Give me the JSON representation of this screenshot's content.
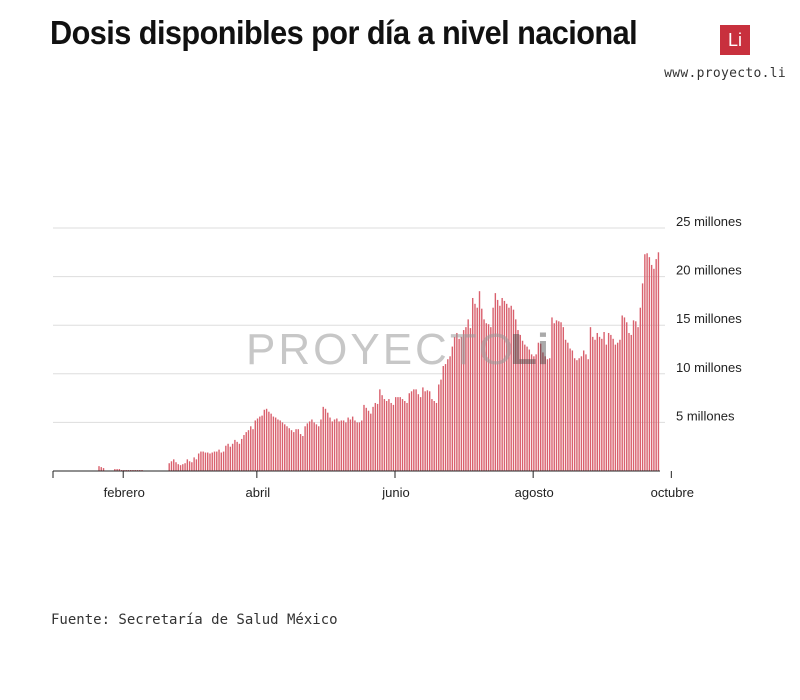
{
  "header": {
    "title": "Dosis disponibles por día a nivel nacional",
    "logo_text": "Li",
    "url": "www.proyecto.li"
  },
  "footer": {
    "source": "Fuente: Secretaría de Salud México"
  },
  "watermark": {
    "text": "PROYECTO",
    "mark": "Li"
  },
  "colors": {
    "bar": "#d9606d",
    "logo": "#c8303d",
    "grid": "#dddddd",
    "axis": "#222222"
  },
  "chart_data": {
    "type": "bar",
    "title": "Dosis disponibles por día a nivel nacional",
    "xlabel": "",
    "ylabel": "",
    "grid": true,
    "y_axis_position": "right",
    "ylim": [
      0,
      25000000
    ],
    "y_ticks": [
      5000000,
      10000000,
      15000000,
      20000000,
      25000000
    ],
    "y_tick_labels": [
      "5 millones",
      "10 millones",
      "15 millones",
      "20 millones",
      "25 millones"
    ],
    "x_tick_labels": [
      "febrero",
      "abril",
      "junio",
      "agosto",
      "octubre"
    ],
    "x_start": "2021-01-01",
    "series": [
      {
        "values_millions": [
          0.0,
          0.0,
          0.0,
          0.0,
          0.0,
          0.0,
          0.0,
          0.0,
          0.0,
          0.0,
          0.0,
          0.0,
          0.0,
          0.0,
          0.0,
          0.0,
          0.0,
          0.0,
          0.0,
          0.0,
          0.5,
          0.4,
          0.3,
          0.0,
          0.0,
          0.0,
          0.0,
          0.2,
          0.2,
          0.2,
          0.1,
          0.1,
          0.1,
          0.1,
          0.1,
          0.1,
          0.1,
          0.1,
          0.1,
          0.1,
          0.0,
          0.0,
          0.0,
          0.0,
          0.0,
          0.0,
          0.0,
          0.0,
          0.0,
          0.0,
          0.0,
          0.8,
          1.0,
          1.2,
          0.9,
          0.7,
          0.6,
          0.7,
          0.8,
          1.2,
          1.0,
          0.9,
          1.4,
          1.2,
          1.8,
          2.0,
          2.0,
          1.9,
          1.9,
          1.8,
          1.9,
          2.0,
          2.0,
          2.2,
          1.9,
          2.0,
          2.6,
          2.8,
          2.5,
          2.8,
          3.2,
          3.0,
          2.8,
          3.3,
          3.7,
          4.0,
          4.2,
          4.6,
          4.3,
          5.2,
          5.4,
          5.6,
          5.7,
          6.3,
          6.4,
          6.1,
          5.9,
          5.6,
          5.5,
          5.3,
          5.2,
          5.0,
          4.8,
          4.6,
          4.4,
          4.2,
          4.0,
          4.3,
          4.3,
          3.8,
          3.6,
          4.6,
          4.9,
          5.1,
          5.3,
          5.0,
          4.8,
          4.6,
          5.3,
          6.6,
          6.4,
          6.0,
          5.5,
          5.1,
          5.3,
          5.4,
          5.1,
          5.2,
          5.2,
          5.0,
          5.5,
          5.3,
          5.6,
          5.2,
          5.0,
          5.0,
          5.2,
          6.8,
          6.5,
          6.2,
          5.9,
          6.6,
          7.0,
          6.9,
          8.4,
          7.8,
          7.4,
          7.2,
          7.4,
          7.0,
          6.8,
          7.6,
          7.6,
          7.6,
          7.4,
          7.2,
          7.0,
          8.0,
          8.2,
          8.4,
          8.4,
          7.9,
          7.6,
          8.6,
          8.2,
          8.3,
          8.2,
          7.4,
          7.2,
          7.0,
          8.9,
          9.4,
          10.8,
          11.0,
          11.5,
          11.8,
          12.8,
          13.8,
          14.2,
          13.6,
          13.8,
          14.5,
          14.8,
          15.6,
          14.7,
          17.8,
          17.2,
          16.8,
          18.5,
          16.7,
          15.6,
          15.2,
          15.1,
          14.8,
          16.8,
          18.3,
          17.6,
          17.0,
          17.8,
          17.5,
          17.2,
          16.8,
          17.0,
          16.6,
          15.6,
          14.5,
          14.0,
          13.4,
          13.0,
          12.8,
          12.5,
          12.0,
          11.8,
          12.0,
          13.2,
          13.1,
          12.2,
          11.8,
          11.5,
          11.6,
          15.8,
          15.2,
          15.5,
          15.4,
          15.3,
          14.8,
          13.5,
          13.2,
          12.6,
          12.4,
          11.6,
          11.4,
          11.6,
          11.8,
          12.4,
          12.0,
          11.5,
          14.8,
          13.8,
          13.5,
          14.2,
          13.8,
          13.6,
          14.3,
          13.0,
          14.2,
          14.0,
          13.6,
          13.0,
          13.2,
          13.5,
          16.0,
          15.8,
          15.3,
          14.2,
          14.0,
          15.5,
          15.4,
          14.8,
          16.8,
          19.3,
          22.3,
          22.4,
          22.0,
          21.2,
          20.8,
          21.8,
          22.5
        ]
      }
    ]
  }
}
